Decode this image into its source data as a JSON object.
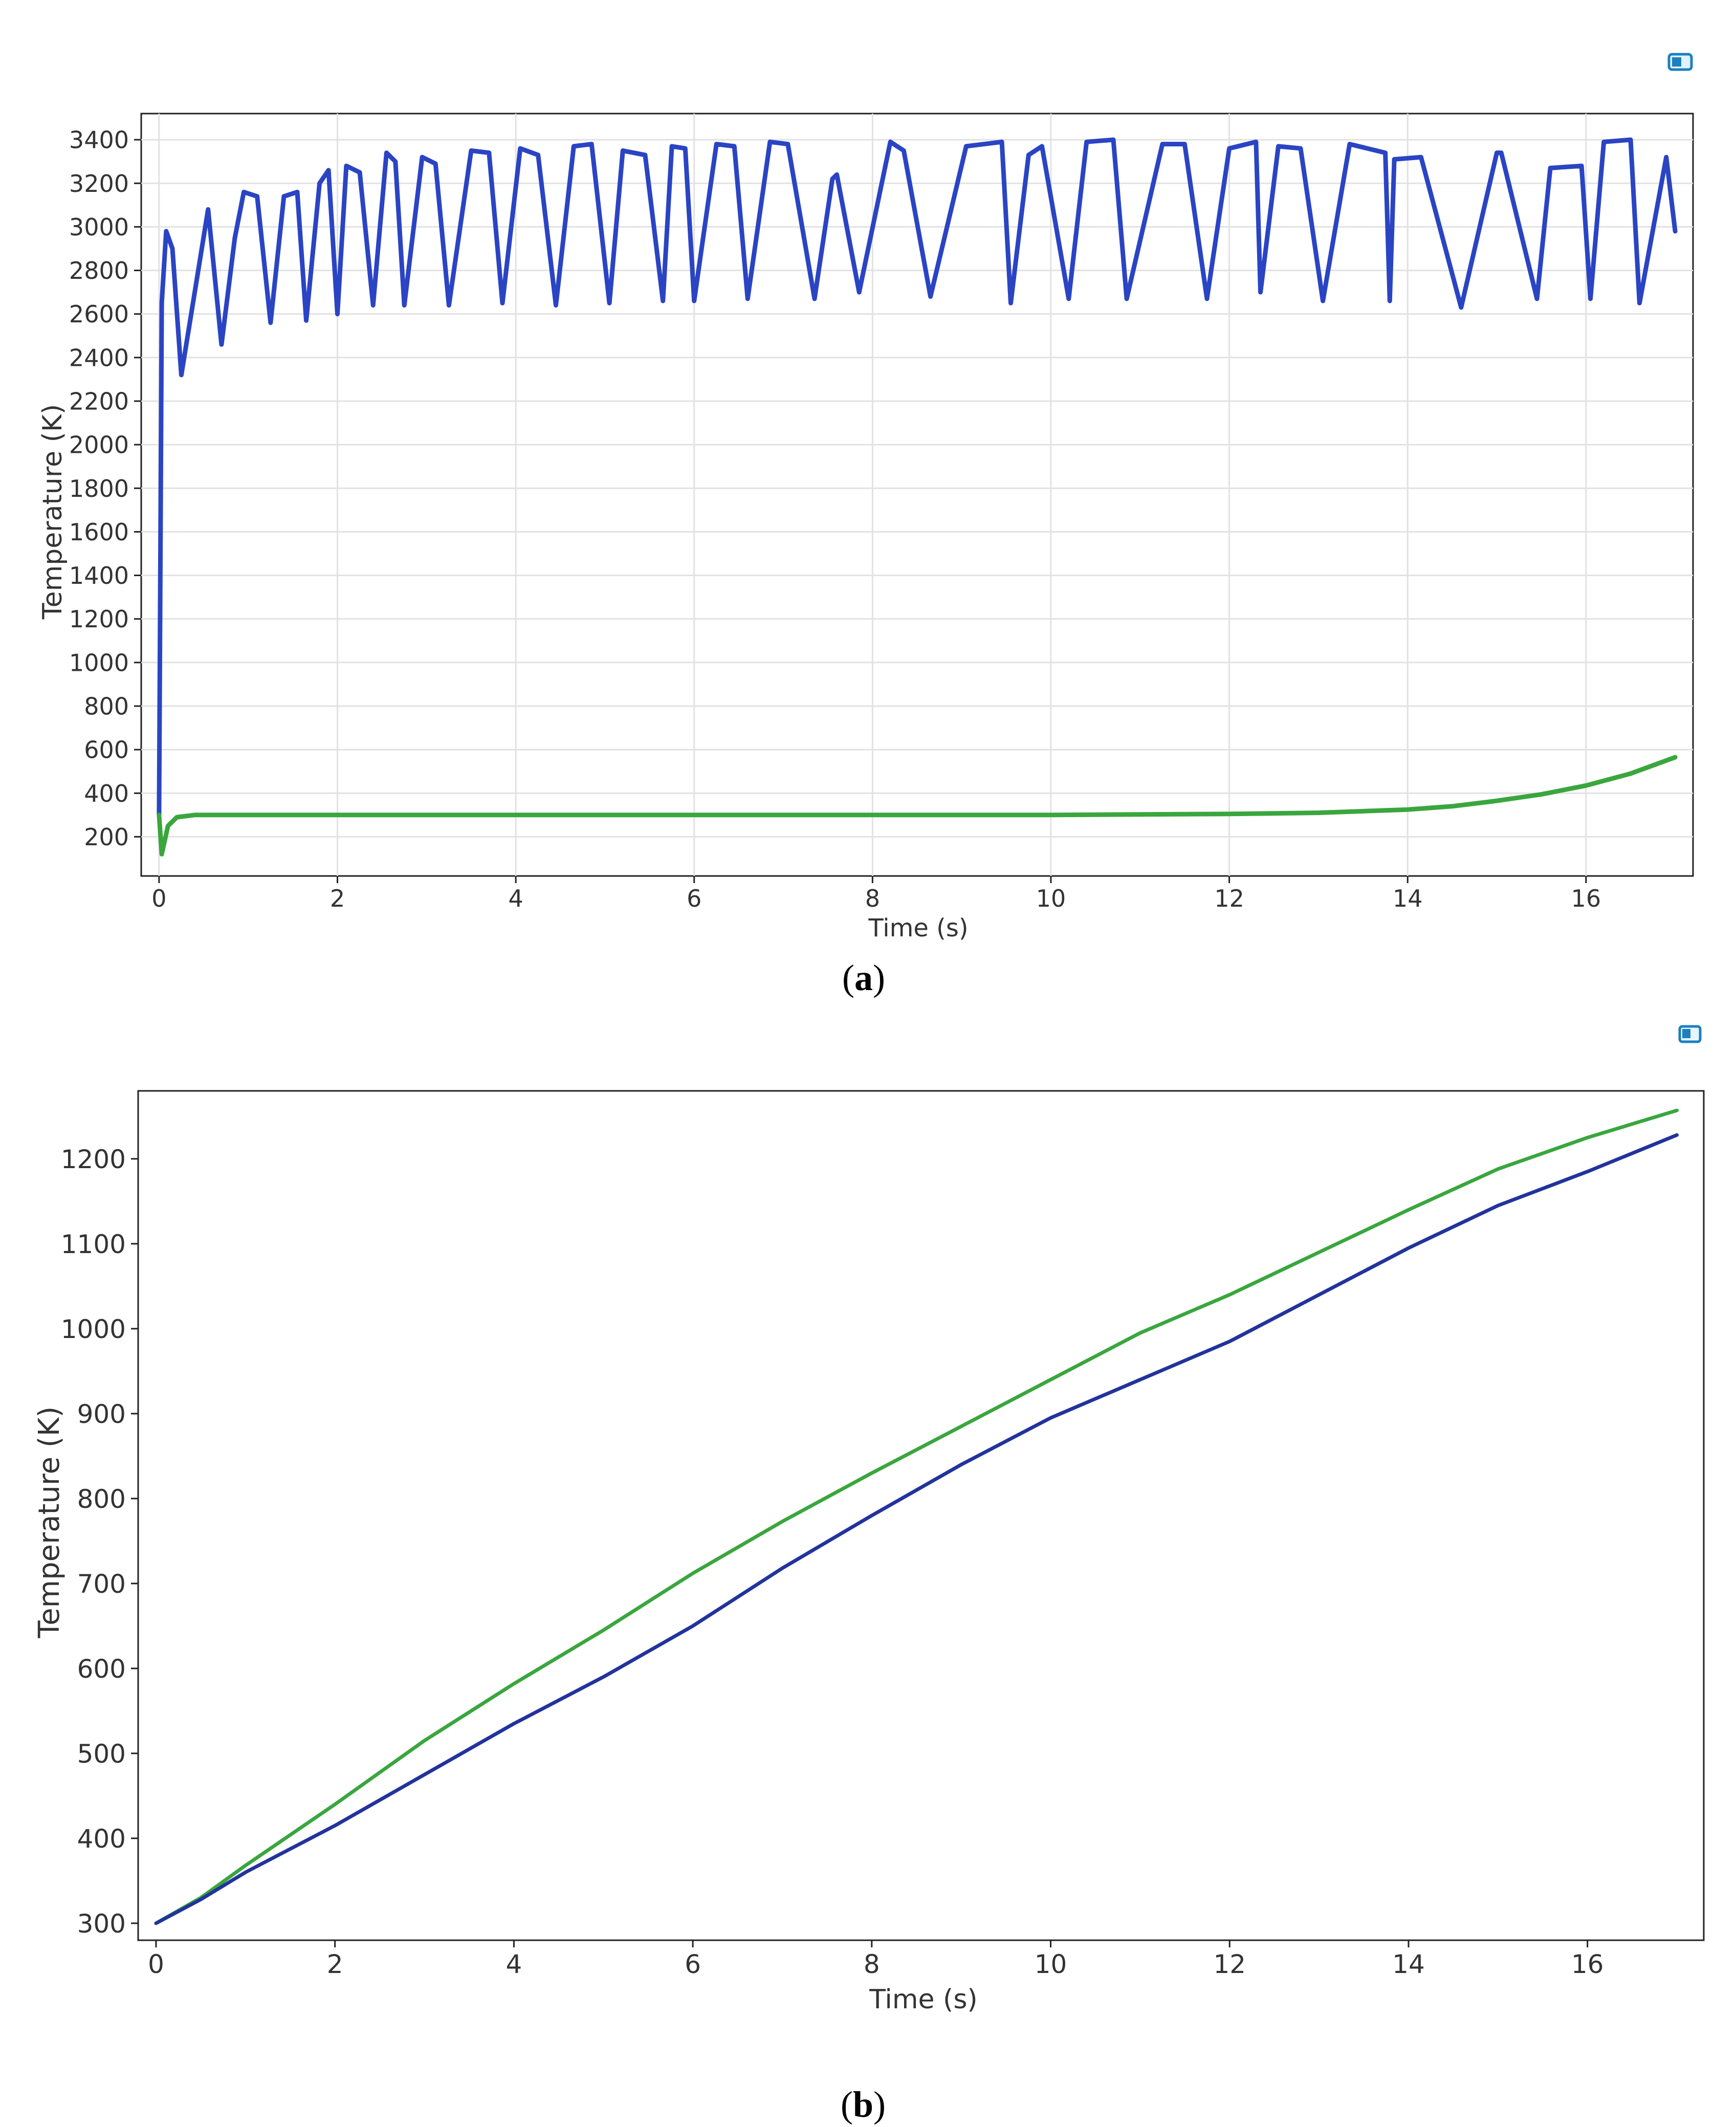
{
  "captions": {
    "a": "a",
    "b": "b"
  },
  "chart_data": [
    {
      "id": "a",
      "type": "line",
      "xlabel": "Time (s)",
      "ylabel": "Temperature (K)",
      "xlim": [
        -0.2,
        17.2
      ],
      "ylim": [
        20,
        3520
      ],
      "xticks": [
        0,
        2,
        4,
        6,
        8,
        10,
        12,
        14,
        16
      ],
      "yticks": [
        200,
        400,
        600,
        800,
        1000,
        1200,
        1400,
        1600,
        1800,
        2000,
        2200,
        2400,
        2600,
        2800,
        3000,
        3200,
        3400
      ],
      "grid": true,
      "series": [
        {
          "color": "#2a44c4",
          "x": [
            0,
            0.03,
            0.08,
            0.15,
            0.25,
            0.4,
            0.55,
            0.7,
            0.85,
            0.95,
            1.1,
            1.25,
            1.4,
            1.55,
            1.65,
            1.8,
            1.9,
            2.0,
            2.1,
            2.25,
            2.4,
            2.55,
            2.65,
            2.75,
            2.95,
            3.1,
            3.25,
            3.5,
            3.7,
            3.85,
            4.05,
            4.25,
            4.45,
            4.65,
            4.85,
            5.05,
            5.2,
            5.45,
            5.65,
            5.75,
            5.9,
            6.0,
            6.25,
            6.45,
            6.6,
            6.85,
            7.05,
            7.35,
            7.55,
            7.6,
            7.85,
            8.2,
            8.35,
            8.65,
            9.05,
            9.45,
            9.55,
            9.75,
            9.9,
            10.2,
            10.4,
            10.7,
            10.85,
            11.25,
            11.5,
            11.75,
            12.0,
            12.3,
            12.35,
            12.55,
            12.8,
            13.05,
            13.35,
            13.75,
            13.8,
            13.85,
            14.15,
            14.6,
            15.0,
            15.05,
            15.45,
            15.6,
            15.95,
            16.05,
            16.2,
            16.5,
            16.6,
            16.9,
            17.0
          ],
          "values": [
            300,
            2650,
            2980,
            2900,
            2320,
            2700,
            3080,
            2460,
            2950,
            3160,
            3140,
            2560,
            3140,
            3160,
            2570,
            3200,
            3260,
            2600,
            3280,
            3250,
            2640,
            3340,
            3300,
            2640,
            3320,
            3290,
            2640,
            3350,
            3340,
            2650,
            3360,
            3330,
            2640,
            3370,
            3380,
            2650,
            3350,
            3330,
            2660,
            3370,
            3360,
            2660,
            3380,
            3370,
            2670,
            3390,
            3380,
            2670,
            3220,
            3240,
            2700,
            3390,
            3350,
            2680,
            3370,
            3390,
            2650,
            3330,
            3370,
            2670,
            3390,
            3400,
            2670,
            3380,
            3380,
            2670,
            3360,
            3390,
            2700,
            3370,
            3360,
            2660,
            3380,
            3340,
            2660,
            3310,
            3320,
            2630,
            3340,
            3340,
            2670,
            3270,
            3280,
            2670,
            3390,
            3400,
            2650,
            3320,
            2980
          ]
        },
        {
          "color": "#3aa63e",
          "x": [
            0,
            0.03,
            0.1,
            0.2,
            0.4,
            1,
            2,
            4,
            6,
            8,
            10,
            12,
            13,
            14,
            14.5,
            15,
            15.5,
            16,
            16.5,
            17
          ],
          "values": [
            300,
            120,
            250,
            290,
            300,
            300,
            300,
            300,
            300,
            300,
            300,
            305,
            310,
            325,
            340,
            365,
            395,
            435,
            490,
            565
          ]
        }
      ]
    },
    {
      "id": "b",
      "type": "line",
      "xlabel": "Time (s)",
      "ylabel": "Temperature (K)",
      "xlim": [
        -0.2,
        17.3
      ],
      "ylim": [
        280,
        1280
      ],
      "xticks": [
        0,
        2,
        4,
        6,
        8,
        10,
        12,
        14,
        16
      ],
      "yticks": [
        300,
        400,
        500,
        600,
        700,
        800,
        900,
        1000,
        1100,
        1200
      ],
      "grid": false,
      "series": [
        {
          "color": "#3aa63e",
          "x": [
            0,
            0.5,
            1,
            2,
            3,
            4,
            5,
            6,
            7,
            8,
            9,
            10,
            11,
            12,
            13,
            14,
            15,
            16,
            17
          ],
          "values": [
            300,
            330,
            368,
            440,
            515,
            582,
            645,
            712,
            773,
            830,
            885,
            940,
            995,
            1040,
            1090,
            1140,
            1188,
            1225,
            1257
          ]
        },
        {
          "color": "#22339c",
          "x": [
            0,
            0.5,
            1,
            2,
            3,
            4,
            5,
            6,
            7,
            8,
            9,
            10,
            11,
            12,
            13,
            14,
            15,
            16,
            17
          ],
          "values": [
            300,
            328,
            360,
            415,
            475,
            535,
            590,
            650,
            718,
            780,
            840,
            895,
            940,
            985,
            1040,
            1095,
            1145,
            1185,
            1228
          ]
        }
      ]
    }
  ]
}
